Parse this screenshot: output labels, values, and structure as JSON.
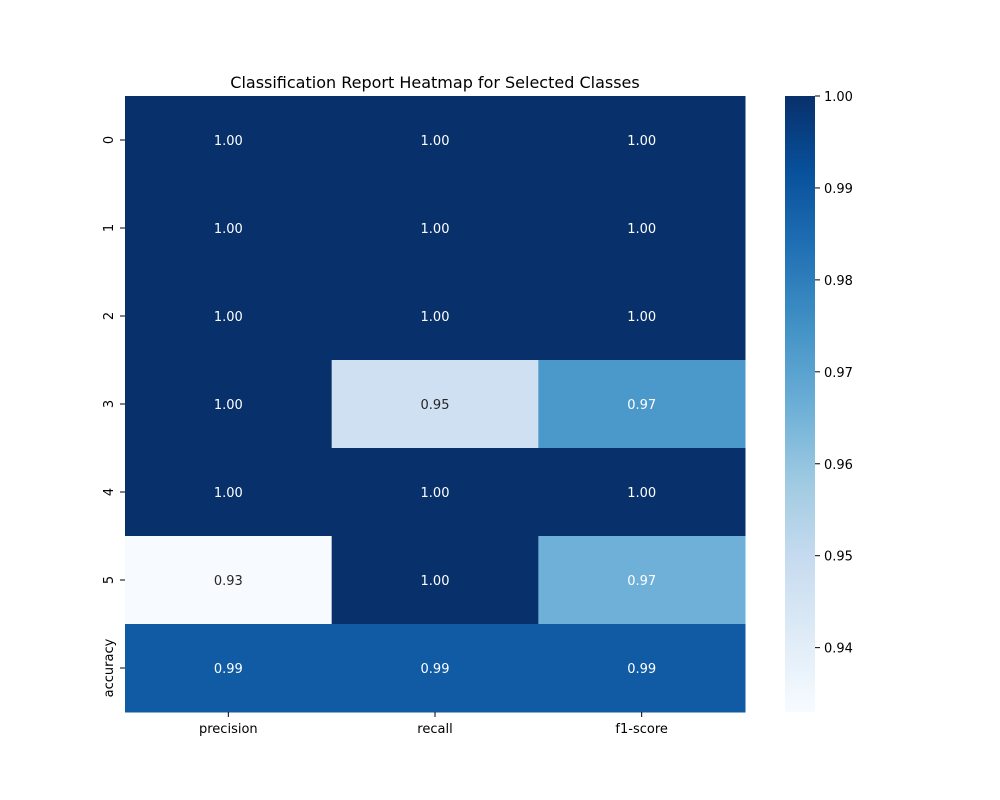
{
  "chart_data": {
    "type": "heatmap",
    "title": "Classification Report Heatmap for Selected Classes",
    "xlabel": "",
    "ylabel": "",
    "columns": [
      "precision",
      "recall",
      "f1-score"
    ],
    "rows": [
      "0",
      "1",
      "2",
      "3",
      "4",
      "5",
      "accuracy"
    ],
    "values": [
      [
        1.0,
        1.0,
        1.0
      ],
      [
        1.0,
        1.0,
        1.0
      ],
      [
        1.0,
        1.0,
        1.0
      ],
      [
        1.0,
        0.95,
        0.97
      ],
      [
        1.0,
        1.0,
        1.0
      ],
      [
        0.93,
        1.0,
        0.97
      ],
      [
        0.99,
        0.99,
        0.99
      ]
    ],
    "cell_values_raw": [
      [
        1.0,
        1.0,
        1.0
      ],
      [
        1.0,
        1.0,
        1.0
      ],
      [
        1.0,
        1.0,
        1.0
      ],
      [
        1.0,
        0.947,
        0.973
      ],
      [
        1.0,
        1.0,
        1.0
      ],
      [
        0.933,
        1.0,
        0.966
      ],
      [
        0.989,
        0.989,
        0.989
      ]
    ],
    "annotation_format": "0.00",
    "colormap": "Blues",
    "colorbar": {
      "range": [
        0.933,
        1.0
      ],
      "ticks": [
        "0.94",
        "0.95",
        "0.96",
        "0.97",
        "0.98",
        "0.99",
        "1.00"
      ]
    },
    "grid": false,
    "legend": "colorbar-right"
  },
  "colors": {
    "low": "#f7fbff",
    "high": "#08306b",
    "text_on_dark": "#ffffff",
    "text_on_light": "#262626"
  }
}
